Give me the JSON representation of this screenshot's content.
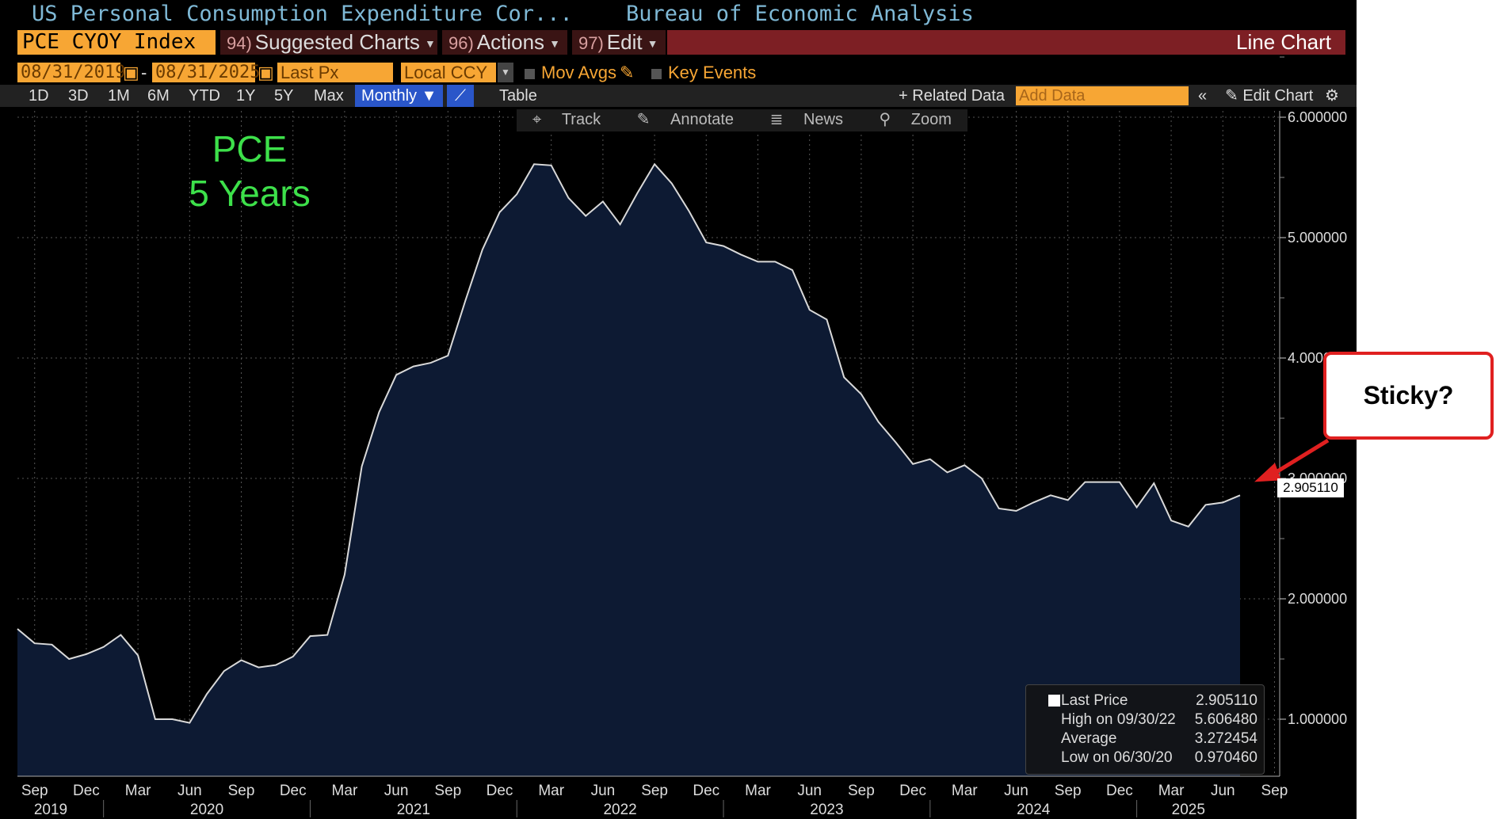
{
  "title": {
    "security_name": "US Personal Consumption Expenditure Cor...",
    "source": "Bureau of Economic Analysis"
  },
  "command_bar": {
    "ticker": "PCE CYOY Index",
    "suggested_num": "94)",
    "suggested_label": "Suggested Charts",
    "actions_num": "96)",
    "actions_label": "Actions",
    "edit_num": "97)",
    "edit_label": "Edit",
    "chart_type": "Line Chart"
  },
  "fields": {
    "start_date": "08/31/2019",
    "dash": "-",
    "end_date": "08/31/2025",
    "field": "Last Px",
    "currency": "Local CCY",
    "mov_avgs": "Mov Avgs",
    "key_events": "Key Events"
  },
  "toolbar": {
    "periods": [
      "1D",
      "3D",
      "1M",
      "6M",
      "YTD",
      "1Y",
      "5Y",
      "Max"
    ],
    "frequency": "Monthly",
    "table": "Table",
    "related": "Related Data",
    "add_data_placeholder": "Add Data",
    "edit_chart": "Edit Chart"
  },
  "subtools": {
    "track": "Track",
    "annotate": "Annotate",
    "news": "News",
    "zoom": "Zoom"
  },
  "annotation": {
    "line1": "PCE",
    "line2": "5 Years",
    "callout": "Sticky?"
  },
  "last_value_label": "2.905110",
  "legend": {
    "last_label": "Last Price",
    "last_value": "2.905110",
    "high_label": "High on 09/30/22",
    "high_value": "5.606480",
    "avg_label": "Average",
    "avg_value": "3.272454",
    "low_label": "Low on 06/30/20",
    "low_value": "0.970460"
  },
  "colors": {
    "line": "#d9d9d9",
    "area": "#0d1a33",
    "accent_orange": "#f7a634",
    "callout_border": "#e02020",
    "annotation_text": "#3de04a"
  },
  "chart_data": {
    "type": "area",
    "title": "",
    "xlabel": "",
    "ylabel": "",
    "ylim": [
      0.5,
      6.0
    ],
    "yticks": [
      "1.000000",
      "2.000000",
      "3.000000",
      "4.000000",
      "5.000000",
      "6.000000"
    ],
    "x_month_labels": [
      "Sep",
      "Dec",
      "Mar",
      "Jun",
      "Sep",
      "Dec",
      "Mar",
      "Jun",
      "Sep",
      "Dec",
      "Mar",
      "Jun",
      "Sep",
      "Dec",
      "Mar",
      "Jun",
      "Sep",
      "Dec",
      "Mar",
      "Jun",
      "Sep",
      "Dec",
      "Mar",
      "Jun",
      "Sep"
    ],
    "x_year_labels": [
      "2019",
      "2020",
      "2021",
      "2022",
      "2023",
      "2024",
      "2025"
    ],
    "x": [
      "2019-08",
      "2019-09",
      "2019-10",
      "2019-11",
      "2019-12",
      "2020-01",
      "2020-02",
      "2020-03",
      "2020-04",
      "2020-05",
      "2020-06",
      "2020-07",
      "2020-08",
      "2020-09",
      "2020-10",
      "2020-11",
      "2020-12",
      "2021-01",
      "2021-02",
      "2021-03",
      "2021-04",
      "2021-05",
      "2021-06",
      "2021-07",
      "2021-08",
      "2021-09",
      "2021-10",
      "2021-11",
      "2021-12",
      "2022-01",
      "2022-02",
      "2022-03",
      "2022-04",
      "2022-05",
      "2022-06",
      "2022-07",
      "2022-08",
      "2022-09",
      "2022-10",
      "2022-11",
      "2022-12",
      "2023-01",
      "2023-02",
      "2023-03",
      "2023-04",
      "2023-05",
      "2023-06",
      "2023-07",
      "2023-08",
      "2023-09",
      "2023-10",
      "2023-11",
      "2023-12",
      "2024-01",
      "2024-02",
      "2024-03",
      "2024-04",
      "2024-05",
      "2024-06",
      "2024-07",
      "2024-08",
      "2024-09",
      "2024-10",
      "2024-11",
      "2024-12",
      "2025-01",
      "2025-02",
      "2025-03",
      "2025-04",
      "2025-05",
      "2025-06",
      "2025-07"
    ],
    "series": [
      {
        "values": [
          1.75,
          1.63,
          1.62,
          1.5,
          1.54,
          1.6,
          1.7,
          1.53,
          1.0,
          1.0,
          0.97,
          1.21,
          1.4,
          1.49,
          1.43,
          1.45,
          1.52,
          1.69,
          1.7,
          2.2,
          3.1,
          3.55,
          3.86,
          3.93,
          3.96,
          4.02,
          4.47,
          4.9,
          5.21,
          5.36,
          5.61,
          5.6,
          5.33,
          5.18,
          5.3,
          5.11,
          5.37,
          5.61,
          5.45,
          5.22,
          4.96,
          4.93,
          4.86,
          4.8,
          4.8,
          4.73,
          4.4,
          4.32,
          3.84,
          3.7,
          3.47,
          3.3,
          3.12,
          3.16,
          3.05,
          3.11,
          3.0,
          2.75,
          2.73,
          2.8,
          2.86,
          2.82,
          2.97,
          2.97,
          2.97,
          2.76,
          2.96,
          2.65,
          2.6,
          2.78,
          2.8,
          2.86
        ]
      }
    ],
    "last_value": 2.90511,
    "grid": true,
    "legend_placement": "bottom-right"
  }
}
